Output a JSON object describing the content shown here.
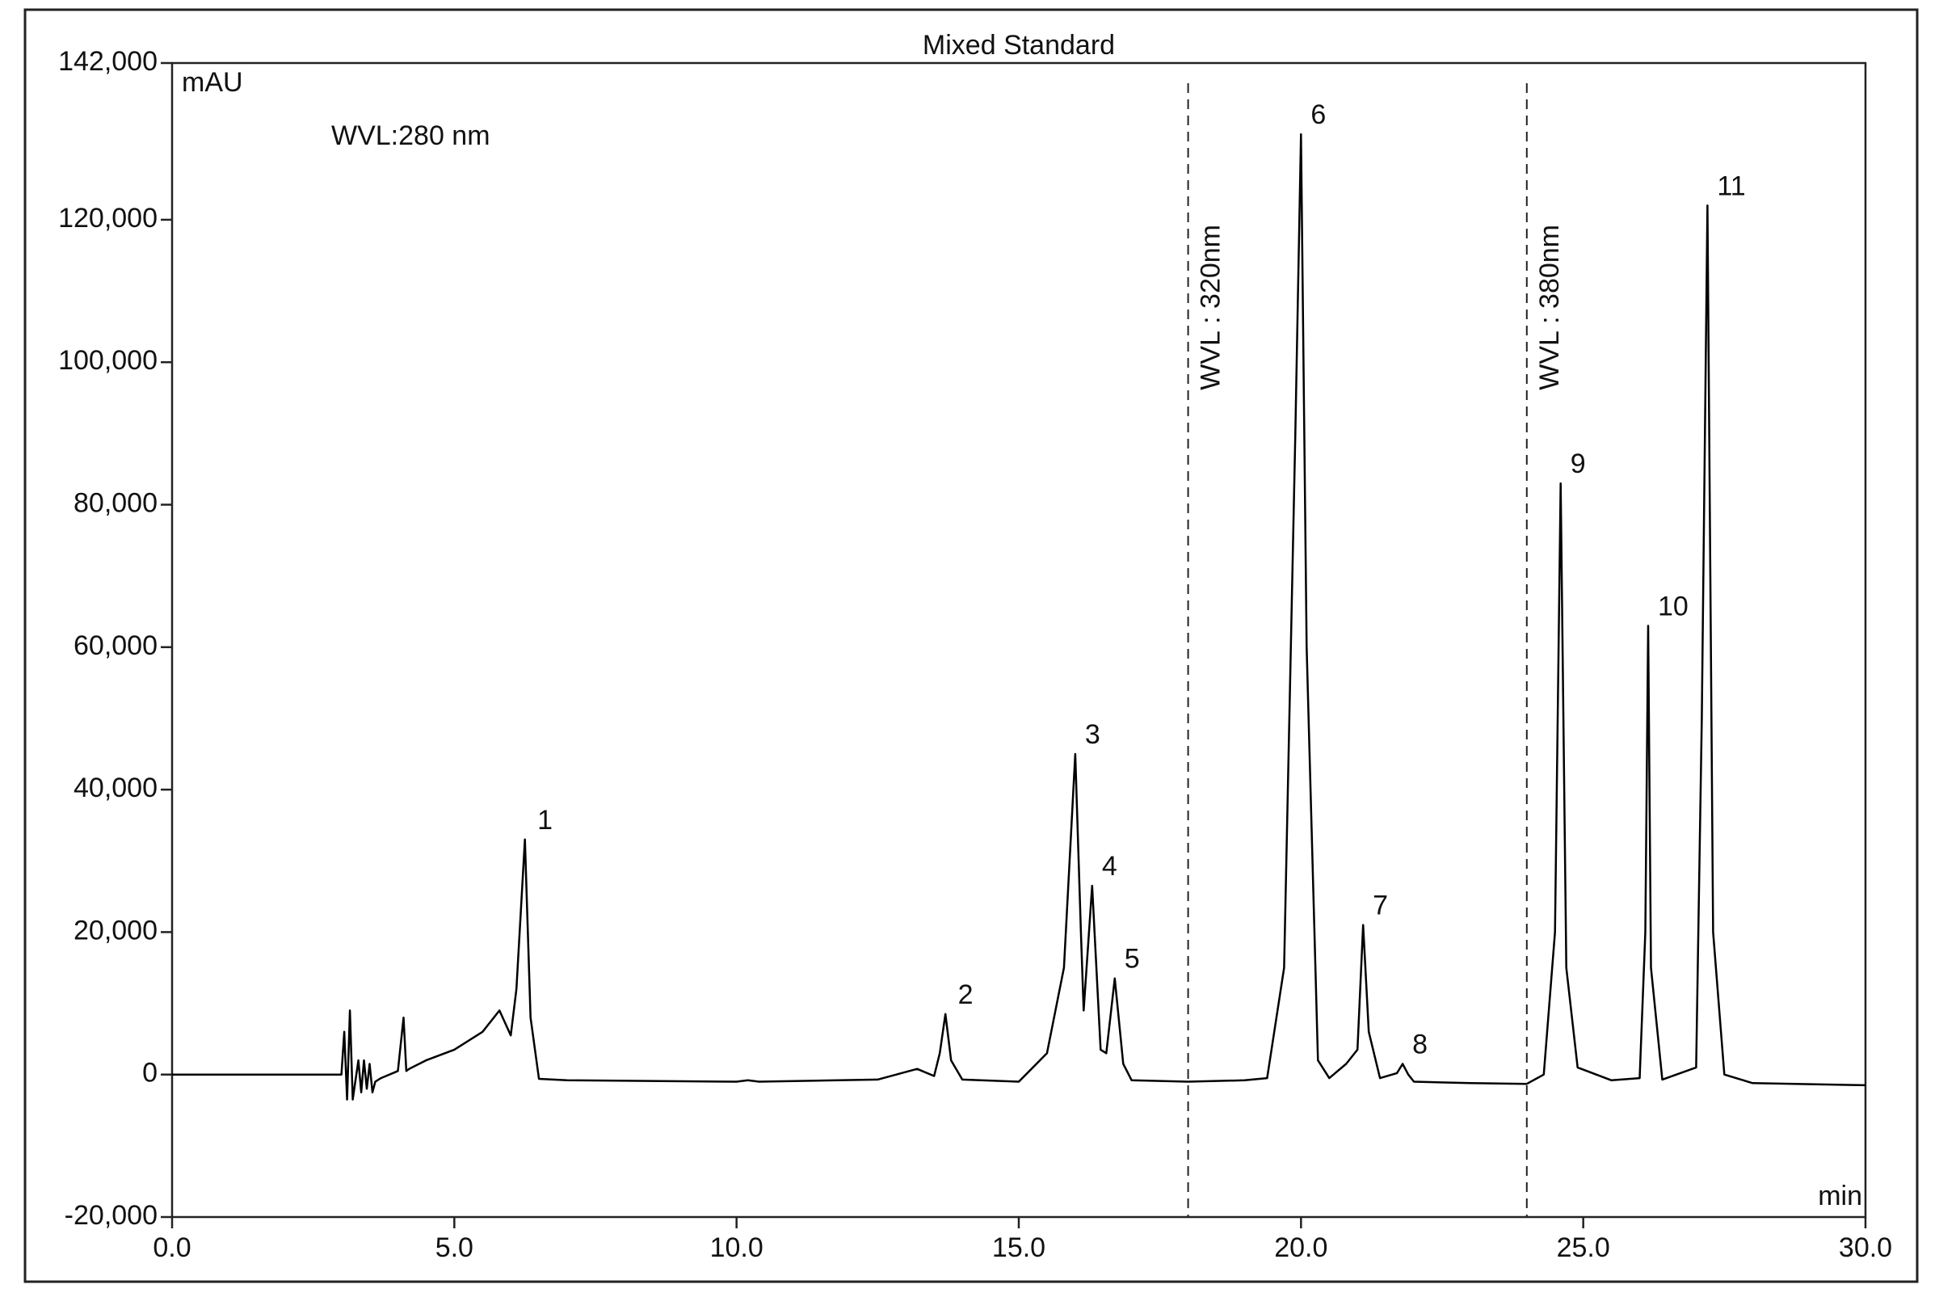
{
  "chart_data": {
    "type": "line",
    "title": "Mixed Standard",
    "y_unit": "mAU",
    "x_unit": "min",
    "annotation": "WVL:280 nm",
    "color": "#000000",
    "xlim": [
      0,
      30
    ],
    "ylim": [
      -20000,
      142000
    ],
    "xticks": [
      {
        "value": 0,
        "label": "0.0"
      },
      {
        "value": 5,
        "label": "5.0"
      },
      {
        "value": 10,
        "label": "10.0"
      },
      {
        "value": 15,
        "label": "15.0"
      },
      {
        "value": 20,
        "label": "20.0"
      },
      {
        "value": 25,
        "label": "25.0"
      },
      {
        "value": 30,
        "label": "30.0"
      }
    ],
    "yticks": [
      {
        "value": -20000,
        "label": "-20,000"
      },
      {
        "value": 0,
        "label": "0"
      },
      {
        "value": 20000,
        "label": "20,000"
      },
      {
        "value": 40000,
        "label": "40,000"
      },
      {
        "value": 60000,
        "label": "60,000"
      },
      {
        "value": 80000,
        "label": "80,000"
      },
      {
        "value": 100000,
        "label": "100,000"
      },
      {
        "value": 120000,
        "label": "120,000"
      },
      {
        "value": 142000,
        "label": "142,000"
      }
    ],
    "x": [
      0,
      3.0,
      3.05,
      3.1,
      3.15,
      3.2,
      3.3,
      3.35,
      3.4,
      3.45,
      3.5,
      3.55,
      3.6,
      3.7,
      4.0,
      4.1,
      4.15,
      4.2,
      4.5,
      5.0,
      5.5,
      5.8,
      6.0,
      6.1,
      6.25,
      6.35,
      6.5,
      7.0,
      10.0,
      10.2,
      10.4,
      12.5,
      13.2,
      13.5,
      13.6,
      13.7,
      13.8,
      14.0,
      15.0,
      15.5,
      15.8,
      16.0,
      16.1,
      16.15,
      16.3,
      16.45,
      16.55,
      16.7,
      16.85,
      17.0,
      18.0,
      19.0,
      19.4,
      19.7,
      19.9,
      20.0,
      20.1,
      20.3,
      20.5,
      20.8,
      21.0,
      21.1,
      21.2,
      21.4,
      21.7,
      21.8,
      21.9,
      22.0,
      23.0,
      24.0,
      24.3,
      24.5,
      24.6,
      24.7,
      24.9,
      25.5,
      26.0,
      26.1,
      26.15,
      26.2,
      26.4,
      27.0,
      27.1,
      27.2,
      27.3,
      27.5,
      28.0,
      30.0
    ],
    "values": [
      0,
      0,
      6000,
      -3500,
      9000,
      -3500,
      2000,
      -2500,
      2000,
      -2000,
      1500,
      -2500,
      -1000,
      -500,
      500,
      8000,
      500,
      800,
      2000,
      3500,
      6000,
      9000,
      5500,
      12000,
      33000,
      8000,
      -600,
      -800,
      -1000,
      -800,
      -1000,
      -700,
      800,
      -200,
      3000,
      8500,
      2000,
      -700,
      -1000,
      3000,
      15000,
      45000,
      20000,
      9000,
      26500,
      3500,
      3000,
      13500,
      1500,
      -800,
      -1000,
      -800,
      -500,
      15000,
      90000,
      132000,
      60000,
      2000,
      -500,
      1500,
      3500,
      21000,
      6000,
      -500,
      200,
      1500,
      0,
      -1000,
      -1200,
      -1300,
      0,
      20000,
      83000,
      15000,
      1000,
      -800,
      -500,
      20000,
      63000,
      15000,
      -700,
      1000,
      50000,
      122000,
      20000,
      0,
      -1200,
      -1500
    ],
    "peaks": [
      {
        "label": "1",
        "x": 6.3,
        "y": 33000
      },
      {
        "label": "2",
        "x": 13.75,
        "y": 8500
      },
      {
        "label": "3",
        "x": 16.0,
        "y": 45000
      },
      {
        "label": "4",
        "x": 16.3,
        "y": 26500
      },
      {
        "label": "5",
        "x": 16.7,
        "y": 13500
      },
      {
        "label": "6",
        "x": 20.0,
        "y": 132000
      },
      {
        "label": "7",
        "x": 21.1,
        "y": 21000
      },
      {
        "label": "8",
        "x": 21.8,
        "y": 1500
      },
      {
        "label": "9",
        "x": 24.6,
        "y": 83000
      },
      {
        "label": "10",
        "x": 26.15,
        "y": 63000
      },
      {
        "label": "11",
        "x": 27.2,
        "y": 122000
      }
    ],
    "markers": [
      {
        "x": 18.0,
        "label": "WVL : 320nm"
      },
      {
        "x": 24.0,
        "label": "WVL : 380nm"
      }
    ]
  }
}
